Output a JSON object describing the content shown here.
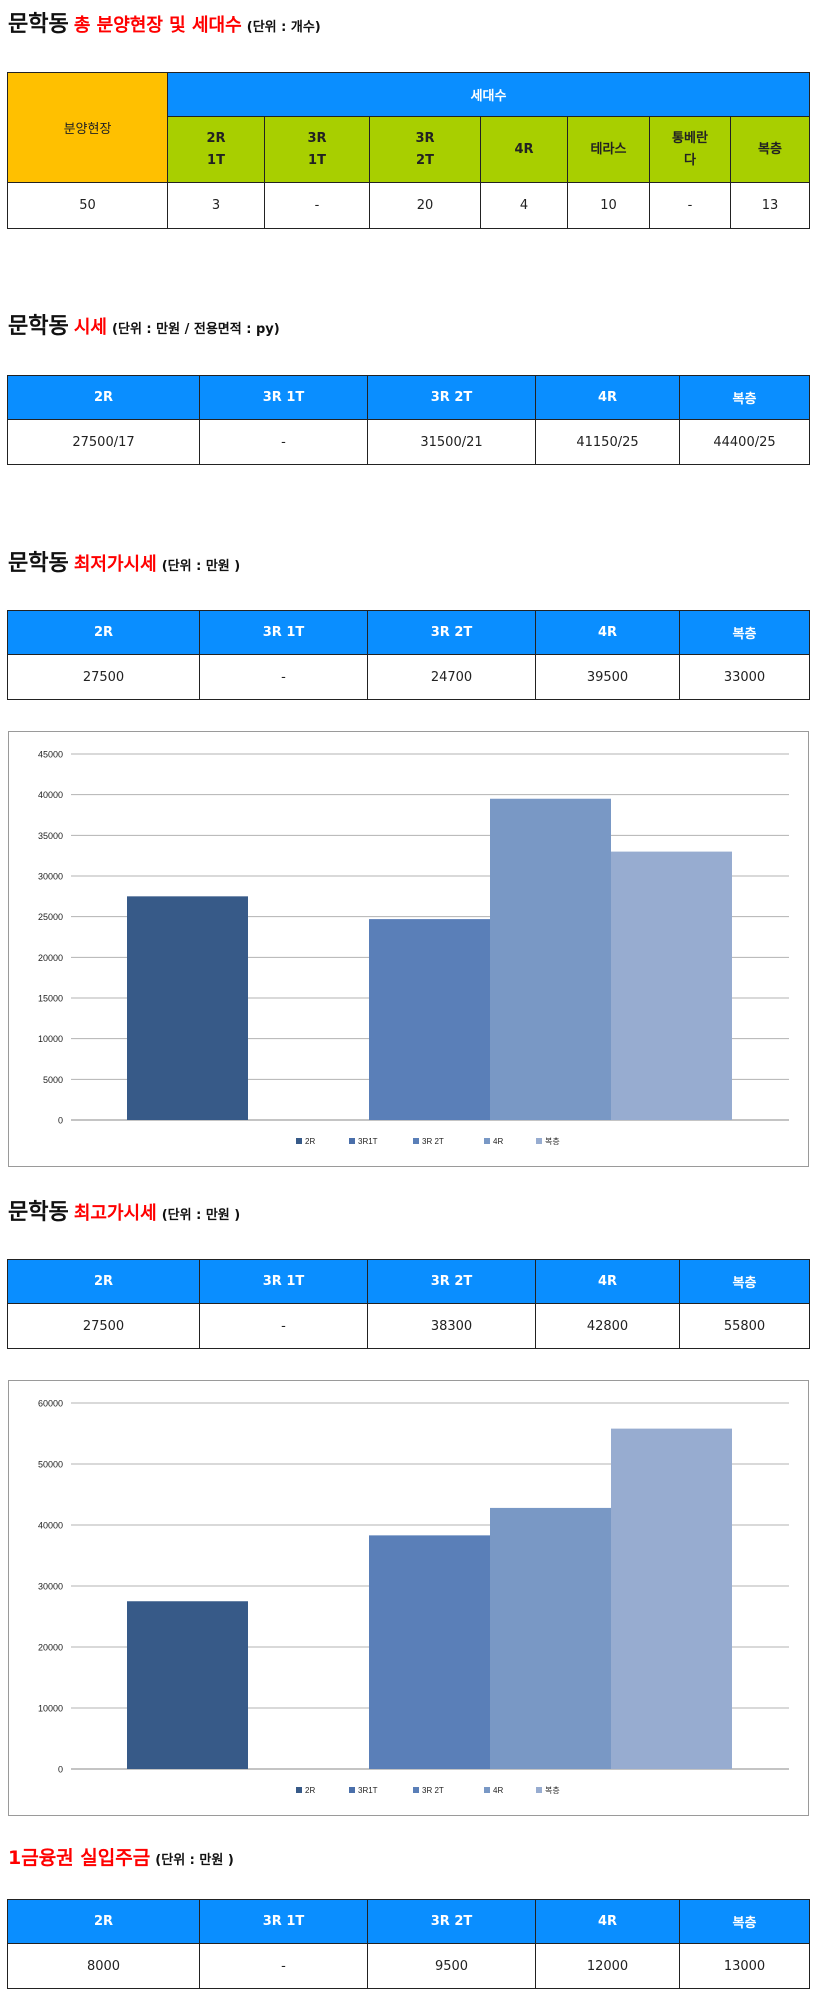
{
  "section1": {
    "title_main": "문학동",
    "title_sub": "총 분양현장 및 세대수",
    "title_unit": "(단위 : 개수)",
    "header_sites": "분양현장",
    "header_units": "세대수",
    "columns": [
      "2R\n1T",
      "3R\n1T",
      "3R\n2T",
      "4R",
      "테라스",
      "통베란\n다",
      "복층"
    ],
    "sites_value": "50",
    "values": [
      "3",
      "-",
      "20",
      "4",
      "10",
      "-",
      "13"
    ]
  },
  "section2": {
    "title_main": "문학동",
    "title_sub": "시세",
    "title_unit": "(단위 : 만원 / 전용면적 : py)",
    "headers": [
      "2R",
      "3R 1T",
      "3R 2T",
      "4R",
      "복층"
    ],
    "values": [
      "27500/17",
      "-",
      "31500/21",
      "41150/25",
      "44400/25"
    ]
  },
  "section3": {
    "title_main": "문학동",
    "title_sub": "최저가시세",
    "title_unit": "(단위 : 만원 )",
    "headers": [
      "2R",
      "3R 1T",
      "3R 2T",
      "4R",
      "복층"
    ],
    "values": [
      "27500",
      "-",
      "24700",
      "39500",
      "33000"
    ]
  },
  "section4": {
    "title_main": "문학동",
    "title_sub": "최고가시세",
    "title_unit": "(단위 : 만원 )",
    "headers": [
      "2R",
      "3R 1T",
      "3R 2T",
      "4R",
      "복층"
    ],
    "values": [
      "27500",
      "-",
      "38300",
      "42800",
      "55800"
    ]
  },
  "section5": {
    "title_main": "1금융권 실입주금",
    "title_unit": "(단위 : 만원 )",
    "headers": [
      "2R",
      "3R 1T",
      "3R 2T",
      "4R",
      "복층"
    ],
    "values": [
      "8000",
      "-",
      "9500",
      "12000",
      "13000"
    ]
  },
  "colors": {
    "header_blue": "#0a8eff",
    "header_orange": "#ffc000",
    "header_green": "#a8cf00",
    "title_red": "#ff0000"
  },
  "chart_data": [
    {
      "type": "bar",
      "title": "",
      "xlabel": "",
      "ylabel": "",
      "ylim": [
        0,
        45000
      ],
      "yticks": [
        0,
        5000,
        10000,
        15000,
        20000,
        25000,
        30000,
        35000,
        40000,
        45000
      ],
      "grid": true,
      "legend": "bottom",
      "series": [
        {
          "name": "2R",
          "values": [
            27500
          ],
          "color": "#375a88"
        },
        {
          "name": "3R1T",
          "values": [
            null
          ],
          "color": "#4a6faa"
        },
        {
          "name": "3R 2T",
          "values": [
            24700
          ],
          "color": "#5a7fb8"
        },
        {
          "name": "4R",
          "values": [
            39500
          ],
          "color": "#7998c5"
        },
        {
          "name": "복층",
          "values": [
            33000
          ],
          "color": "#97acd0"
        }
      ]
    },
    {
      "type": "bar",
      "title": "",
      "xlabel": "",
      "ylabel": "",
      "ylim": [
        0,
        60000
      ],
      "yticks": [
        0,
        10000,
        20000,
        30000,
        40000,
        50000,
        60000
      ],
      "grid": true,
      "legend": "bottom",
      "series": [
        {
          "name": "2R",
          "values": [
            27500
          ],
          "color": "#375a88"
        },
        {
          "name": "3R1T",
          "values": [
            null
          ],
          "color": "#4a6faa"
        },
        {
          "name": "3R 2T",
          "values": [
            38300
          ],
          "color": "#5a7fb8"
        },
        {
          "name": "4R",
          "values": [
            42800
          ],
          "color": "#7998c5"
        },
        {
          "name": "복층",
          "values": [
            55800
          ],
          "color": "#97acd0"
        }
      ]
    }
  ]
}
